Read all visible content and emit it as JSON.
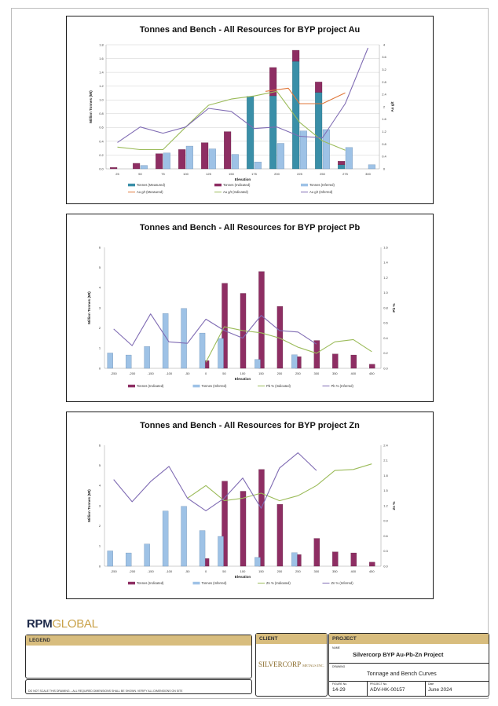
{
  "charts": [
    {
      "title": "Tonnes and Bench - All Resources for BYP project Au",
      "xlabel": "Elevation",
      "ylabel_left": "Million Tonnes (Mt)",
      "ylabel_right": "Au g/t",
      "categories": [
        "25",
        "50",
        "75",
        "100",
        "125",
        "150",
        "175",
        "200",
        "225",
        "250",
        "275",
        "300"
      ],
      "yticks_left": [
        "0.0",
        "0.2",
        "0.4",
        "0.6",
        "0.8",
        "1.0",
        "1.2",
        "1.4",
        "1.6",
        "1.8"
      ],
      "yticks_right": [
        "0",
        "0.4",
        "0.8",
        "1.2",
        "1.6",
        "2",
        "2.4",
        "2.8",
        "3.2",
        "3.6",
        "4"
      ],
      "legend": [
        "Tonnes (Measured)",
        "Tonnes (Indicated)",
        "Tonnes (Inferred)",
        "Au g/t (Measured)",
        "Au g/t (Indicated)",
        "Au g/t (Inferred)"
      ]
    },
    {
      "title": "Tonnes and Bench - All Resources for BYP project Pb",
      "xlabel": "Elevation",
      "ylabel_left": "Million Tonnes (Mt)",
      "ylabel_right": "Pb %",
      "categories": [
        "-250",
        "-200",
        "-150",
        "-100",
        "-50",
        "0",
        "50",
        "100",
        "150",
        "200",
        "250",
        "300",
        "350",
        "400",
        "450"
      ],
      "yticks_left": [
        "0",
        "1",
        "2",
        "3",
        "4",
        "5",
        "6"
      ],
      "yticks_right": [
        "0.0",
        "0.2",
        "0.4",
        "0.6",
        "0.8",
        "1.0",
        "1.2",
        "1.4",
        "1.6"
      ],
      "legend": [
        "Tonnes (Indicated)",
        "Tonnes (Inferred)",
        "Pb % (Indicated)",
        "Pb % (Inferred)"
      ]
    },
    {
      "title": "Tonnes and Bench - All Resources for BYP project Zn",
      "xlabel": "Elevation",
      "ylabel_left": "Million Tonnes (Mt)",
      "ylabel_right": "Zn %",
      "categories": [
        "-250",
        "-200",
        "-150",
        "-100",
        "-50",
        "0",
        "50",
        "100",
        "150",
        "200",
        "250",
        "300",
        "350",
        "400",
        "450"
      ],
      "yticks_left": [
        "0",
        "1",
        "2",
        "3",
        "4",
        "5",
        "6"
      ],
      "yticks_right": [
        "0.0",
        "0.3",
        "0.6",
        "0.9",
        "1.2",
        "1.5",
        "1.8",
        "2.1",
        "2.4"
      ],
      "legend": [
        "Tonnes (Indicated)",
        "Tonnes (Inferred)",
        "Zn % (Indicated)",
        "Zn % (Inferred)"
      ]
    }
  ],
  "chart_data": [
    {
      "type": "bar",
      "title": "Tonnes and Bench - All Resources for BYP project Au",
      "xlabel": "Elevation",
      "ylabel": "Million Tonnes (Mt)",
      "y2label": "Au g/t",
      "ylim": [
        0,
        1.8
      ],
      "y2lim": [
        0,
        4
      ],
      "categories": [
        "25",
        "50",
        "75",
        "100",
        "125",
        "150",
        "175",
        "200",
        "225",
        "250",
        "275",
        "300"
      ],
      "bar_series": [
        {
          "name": "Tonnes (Measured)",
          "values": [
            0,
            0,
            0,
            0,
            0,
            0,
            1.05,
            1.06,
            1.56,
            1.11,
            0.06,
            0
          ],
          "color": "#3a8fa8"
        },
        {
          "name": "Tonnes (Indicated)",
          "values": [
            0.02,
            0.08,
            0.22,
            0.28,
            0.38,
            0.54,
            0,
            0.41,
            0.16,
            0.15,
            0.05,
            0
          ],
          "color": "#8e2e63"
        },
        {
          "name": "Tonnes (Inferred)",
          "values": [
            0,
            0.05,
            0.23,
            0.33,
            0.29,
            0.21,
            0.1,
            0.37,
            0.55,
            0.57,
            0.31,
            0.06
          ],
          "color": "#9ec2e6"
        }
      ],
      "line_series": [
        {
          "name": "Au g/t (Measured)",
          "color": "#e0773a",
          "points": [
            [
              7,
              2.5
            ],
            [
              8,
              2.6
            ],
            [
              8.5,
              2.1
            ],
            [
              9.5,
              2.1
            ],
            [
              10.5,
              2.45
            ]
          ]
        },
        {
          "name": "Au g/t (Indicated)",
          "color": "#9bbb59",
          "points": [
            [
              0.5,
              0.7
            ],
            [
              1.5,
              0.62
            ],
            [
              2.5,
              0.62
            ],
            [
              3.5,
              1.35
            ],
            [
              4.5,
              2.05
            ],
            [
              5.5,
              2.25
            ],
            [
              6.5,
              2.35
            ],
            [
              7.5,
              2.5
            ],
            [
              8.5,
              1.5
            ],
            [
              9.5,
              0.9
            ],
            [
              10.5,
              0.6
            ]
          ]
        },
        {
          "name": "Au g/t (Inferred)",
          "color": "#7f6bb3",
          "points": [
            [
              0.5,
              0.85
            ],
            [
              1.5,
              1.35
            ],
            [
              2.5,
              1.15
            ],
            [
              3.5,
              1.35
            ],
            [
              4.5,
              1.95
            ],
            [
              5.5,
              1.85
            ],
            [
              6.5,
              1.3
            ],
            [
              7.5,
              1.35
            ],
            [
              8.5,
              1.05
            ],
            [
              9.5,
              1.0
            ],
            [
              10.5,
              2.1
            ],
            [
              11.5,
              3.9
            ]
          ]
        }
      ],
      "grid": true,
      "legend_position": "bottom"
    },
    {
      "type": "bar",
      "title": "Tonnes and Bench - All Resources for BYP project Pb",
      "xlabel": "Elevation",
      "ylabel": "Million Tonnes (Mt)",
      "y2label": "Pb %",
      "ylim": [
        0,
        6
      ],
      "y2lim": [
        0,
        1.6
      ],
      "categories": [
        "-250",
        "-200",
        "-150",
        "-100",
        "-50",
        "0",
        "50",
        "100",
        "150",
        "200",
        "250",
        "300",
        "350",
        "400",
        "450"
      ],
      "bar_series": [
        {
          "name": "Tonnes (Indicated)",
          "values": [
            0,
            0,
            0,
            0,
            0,
            0.38,
            4.22,
            3.72,
            4.8,
            3.07,
            0.58,
            1.38,
            0.71,
            0.66,
            0.2
          ],
          "color": "#8e2e63"
        },
        {
          "name": "Tonnes (Inferred)",
          "values": [
            0.76,
            0.66,
            1.08,
            2.72,
            2.97,
            1.75,
            1.48,
            0,
            0.44,
            0,
            0.67,
            0,
            0,
            0,
            0
          ],
          "color": "#9ec2e6"
        }
      ],
      "line_series": [
        {
          "name": "Pb % (Indicated)",
          "color": "#9bbb59",
          "points": [
            [
              5,
              0.08
            ],
            [
              6,
              0.55
            ],
            [
              7,
              0.5
            ],
            [
              8,
              0.47
            ],
            [
              9,
              0.4
            ],
            [
              10,
              0.28
            ],
            [
              11,
              0.2
            ],
            [
              12,
              0.35
            ],
            [
              13,
              0.38
            ],
            [
              14,
              0.22
            ]
          ]
        },
        {
          "name": "Pb % (Inferred)",
          "color": "#7f6bb3",
          "points": [
            [
              0,
              0.52
            ],
            [
              1,
              0.3
            ],
            [
              2,
              0.72
            ],
            [
              3,
              0.35
            ],
            [
              4,
              0.33
            ],
            [
              5,
              0.65
            ],
            [
              6,
              0.5
            ],
            [
              7,
              0.4
            ],
            [
              8,
              0.7
            ],
            [
              9,
              0.5
            ],
            [
              10,
              0.48
            ],
            [
              11,
              0.32
            ]
          ]
        }
      ],
      "grid": false,
      "legend_position": "bottom"
    },
    {
      "type": "bar",
      "title": "Tonnes and Bench - All Resources for BYP project Zn",
      "xlabel": "Elevation",
      "ylabel": "Million Tonnes (Mt)",
      "y2label": "Zn %",
      "ylim": [
        0,
        6
      ],
      "y2lim": [
        0,
        2.4
      ],
      "categories": [
        "-250",
        "-200",
        "-150",
        "-100",
        "-50",
        "0",
        "50",
        "100",
        "150",
        "200",
        "250",
        "300",
        "350",
        "400",
        "450"
      ],
      "bar_series": [
        {
          "name": "Tonnes (Indicated)",
          "values": [
            0,
            0,
            0,
            0,
            0,
            0.38,
            4.22,
            3.72,
            4.8,
            3.07,
            0.58,
            1.38,
            0.71,
            0.66,
            0.2
          ],
          "color": "#8e2e63"
        },
        {
          "name": "Tonnes (Inferred)",
          "values": [
            0.76,
            0.66,
            1.1,
            2.74,
            2.97,
            1.77,
            1.48,
            0,
            0.44,
            0,
            0.67,
            0,
            0,
            0,
            0
          ],
          "color": "#9ec2e6"
        }
      ],
      "line_series": [
        {
          "name": "Zn % (Indicated)",
          "color": "#9bbb59",
          "points": [
            [
              4,
              1.35
            ],
            [
              5,
              1.6
            ],
            [
              6,
              1.3
            ],
            [
              7,
              1.35
            ],
            [
              8,
              1.45
            ],
            [
              9,
              1.3
            ],
            [
              10,
              1.4
            ],
            [
              11,
              1.6
            ],
            [
              12,
              1.9
            ],
            [
              13,
              1.92
            ],
            [
              14,
              2.03
            ]
          ]
        },
        {
          "name": "Zn % (Inferred)",
          "color": "#7f6bb3",
          "points": [
            [
              0,
              1.72
            ],
            [
              1,
              1.28
            ],
            [
              2,
              1.68
            ],
            [
              3,
              1.98
            ],
            [
              4,
              1.35
            ],
            [
              5,
              1.1
            ],
            [
              6,
              1.35
            ],
            [
              7,
              1.75
            ],
            [
              8,
              1.15
            ],
            [
              9,
              1.95
            ],
            [
              10,
              2.25
            ],
            [
              11,
              1.9
            ]
          ]
        }
      ],
      "grid": false,
      "legend_position": "bottom"
    }
  ],
  "titleblock": {
    "logo_part1": "RPM",
    "logo_part2": "GLOBAL",
    "legend_label": "LEGEND",
    "client_label": "CLIENT",
    "client_logo": "SILVERCORP",
    "client_logo_sub": "METALS INC.",
    "project_label": "PROJECT",
    "name_label": "NAME",
    "project_name": "Silvercorp BYP Au-Pb-Zn Project",
    "drawing_label": "DRAWING",
    "drawing_name": "Tonnage and Bench Curves",
    "figure_no_label": "FIGURE No.",
    "figure_no": "14-29",
    "project_no_label": "PROJECT No.",
    "project_no": "ADV-HK-00157",
    "date_label": "Date",
    "date": "June 2024",
    "disclaimer": "DO NOT SCALE THIS DRAWING – ALL REQUIRED DIMENSIONS SHALL BE SHOWN. VERIFY ALL DIMENSIONS ON SITE"
  }
}
